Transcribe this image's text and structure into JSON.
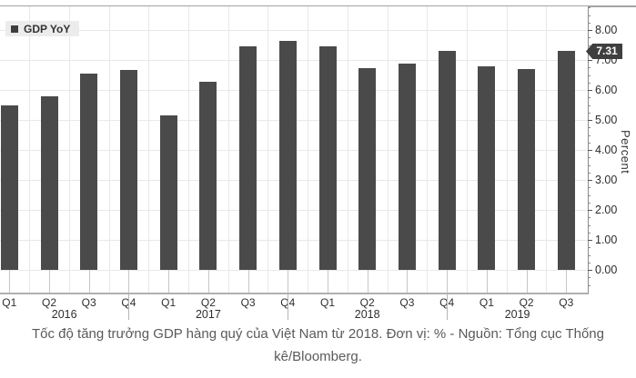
{
  "legend": {
    "label": "GDP YoY"
  },
  "annotation": {
    "value_label": "7.31"
  },
  "y_axis": {
    "title": "Percent",
    "labels": [
      "0.00",
      "1.00",
      "2.00",
      "3.00",
      "4.00",
      "5.00",
      "6.00",
      "7.00",
      "8.00"
    ]
  },
  "x_axis": {
    "quarters": [
      "Q1",
      "Q2",
      "Q3",
      "Q4",
      "Q1",
      "Q2",
      "Q3",
      "Q4",
      "Q1",
      "Q2",
      "Q3",
      "Q4",
      "Q1",
      "Q2",
      "Q3"
    ],
    "years": [
      "2016",
      "2017",
      "2018",
      "2019"
    ]
  },
  "caption": "Tốc độ tăng trưởng GDP hàng quý của Việt Nam từ 2018. Đơn vị: % - Nguồn: Tổng cục Thống kê/Bloomberg.",
  "colors": {
    "bar": "#4a4a4a",
    "badge_bg": "#3f3f3f",
    "badge_text": "#ffffff",
    "grid": "#eae7e7",
    "axis_line": "#8c8c8c",
    "legend_bg": "#ececec"
  },
  "chart_data": {
    "type": "bar",
    "title": "",
    "series": [
      {
        "name": "GDP YoY",
        "values": [
          5.48,
          5.78,
          6.56,
          6.68,
          5.15,
          6.28,
          7.46,
          7.65,
          7.45,
          6.73,
          6.88,
          7.31,
          6.79,
          6.71,
          7.31
        ]
      }
    ],
    "categories": [
      "Q1 2016",
      "Q2 2016",
      "Q3 2016",
      "Q4 2016",
      "Q1 2017",
      "Q2 2017",
      "Q3 2017",
      "Q4 2017",
      "Q1 2018",
      "Q2 2018",
      "Q3 2018",
      "Q4 2018",
      "Q1 2019",
      "Q2 2019",
      "Q3 2019"
    ],
    "xlabel": "",
    "ylabel": "Percent",
    "ylim": [
      0,
      8
    ],
    "y_major_step": 1,
    "y_minor_step": 0.25,
    "grid": true,
    "legend_position": "top-left",
    "y_axis_side": "right",
    "last_value_label": "7.31"
  }
}
